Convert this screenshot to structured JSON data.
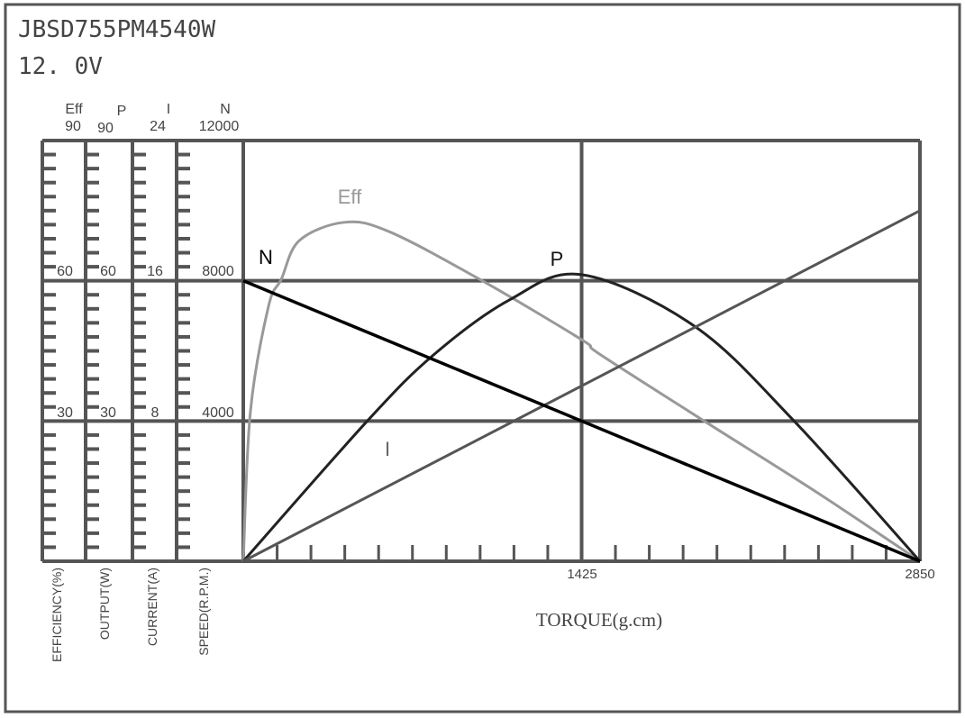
{
  "header": {
    "model": "JBSD755PM4540W",
    "voltage": "12. 0V"
  },
  "chart_data": {
    "type": "line",
    "xlabel": "TORQUE(g.cm)",
    "xlim": [
      0,
      2850
    ],
    "x_ticks": [
      "1425",
      "2850"
    ],
    "grid": true,
    "axes": [
      {
        "key": "eff",
        "head": "Eff",
        "label": "EFFICIENCY(%)",
        "max": 90,
        "ticks": [
          "90",
          "60",
          "30"
        ]
      },
      {
        "key": "p",
        "head": "P",
        "label": "OUTPUT(W)",
        "max": 90,
        "ticks": [
          "90",
          "60",
          "30"
        ]
      },
      {
        "key": "i",
        "head": "I",
        "label": "CURRENT(A)",
        "max": 24,
        "ticks": [
          "24",
          "16",
          "8"
        ]
      },
      {
        "key": "n",
        "head": "N",
        "label": "SPEED(R.P.M.)",
        "max": 12000,
        "ticks": [
          "12000",
          "8000",
          "4000"
        ]
      }
    ],
    "series": [
      {
        "name": "Eff",
        "axis": "eff",
        "color": "#999999",
        "x": [
          0,
          30,
          106,
          160,
          236,
          425,
          615,
          996,
          1425,
          1501,
          1938,
          2420,
          2850
        ],
        "y": [
          0,
          32,
          54.5,
          60.3,
          68.6,
          72.5,
          70.5,
          60.3,
          47.4,
          44.3,
          30.1,
          14.6,
          0
        ]
      },
      {
        "name": "P",
        "axis": "p",
        "color": "#222222",
        "x": [
          0,
          524,
          805,
          1121,
          1425,
          1900,
          2318,
          2850
        ],
        "y": [
          0,
          30.1,
          44.3,
          55.9,
          61.3,
          50.3,
          30.1,
          0
        ]
      },
      {
        "name": "I",
        "axis": "i",
        "color": "#555555",
        "x": [
          0,
          2850
        ],
        "y": [
          0,
          20
        ]
      },
      {
        "name": "N",
        "axis": "n",
        "color": "#000000",
        "x": [
          0,
          2850
        ],
        "y": [
          8000,
          0
        ]
      }
    ]
  }
}
